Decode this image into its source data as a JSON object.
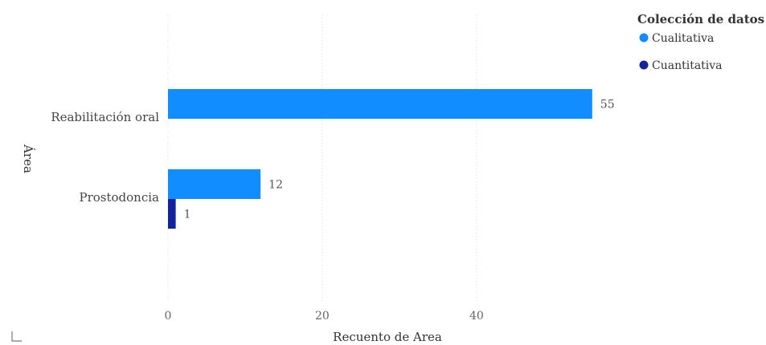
{
  "chart_data": {
    "type": "bar",
    "orientation": "horizontal",
    "categories": [
      "Reabilitación oral",
      "Prostodoncia"
    ],
    "series": [
      {
        "name": "Cualitativa",
        "values": [
          55,
          12
        ],
        "color": "#118DFF"
      },
      {
        "name": "Cuantitativa",
        "values": [
          null,
          1
        ],
        "color": "#12239E"
      }
    ],
    "xlabel": "Recuento de Area",
    "ylabel": "Área",
    "xlim": [
      0,
      57
    ],
    "xticks": [
      0,
      20,
      40
    ],
    "grid": true,
    "legend": {
      "title": "Colección de datos",
      "position": "top-right"
    }
  }
}
